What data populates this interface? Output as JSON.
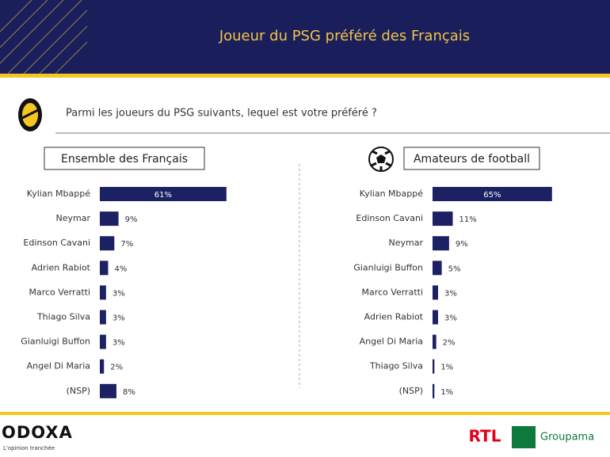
{
  "header": {
    "title": "Joueur du PSG préféré des Français"
  },
  "question": "Parmi les joueurs du PSG suivants, lequel est votre préféré ?",
  "footer": {
    "brand": "ODOXA",
    "tagline": "L'opinion tranchée",
    "partner1": "RTL",
    "partner2": "Groupama"
  },
  "chart_data": [
    {
      "type": "bar",
      "title": "Ensemble des Français",
      "color": "#1c2163",
      "categories": [
        "Kylian Mbappé",
        "Neymar",
        "Edinson Cavani",
        "Adrien Rabiot",
        "Marco Verratti",
        "Thiago Silva",
        "Gianluigi Buffon",
        "Angel Di Maria",
        "(NSP)"
      ],
      "values": [
        61,
        9,
        7,
        4,
        3,
        3,
        3,
        2,
        8
      ],
      "value_labels": [
        "61%",
        "9%",
        "7%",
        "4%",
        "3%",
        "3%",
        "3%",
        "2%",
        "8%"
      ]
    },
    {
      "type": "bar",
      "title": "Amateurs de football",
      "color": "#1c2163",
      "categories": [
        "Kylian Mbappé",
        "Edinson Cavani",
        "Neymar",
        "Gianluigi Buffon",
        "Marco Verratti",
        "Adrien Rabiot",
        "Angel Di Maria",
        "Thiago Silva",
        "(NSP)"
      ],
      "values": [
        65,
        11,
        9,
        5,
        3,
        3,
        2,
        1,
        1
      ],
      "value_labels": [
        "65%",
        "11%",
        "9%",
        "5%",
        "3%",
        "3%",
        "2%",
        "1%",
        "1%"
      ]
    }
  ]
}
